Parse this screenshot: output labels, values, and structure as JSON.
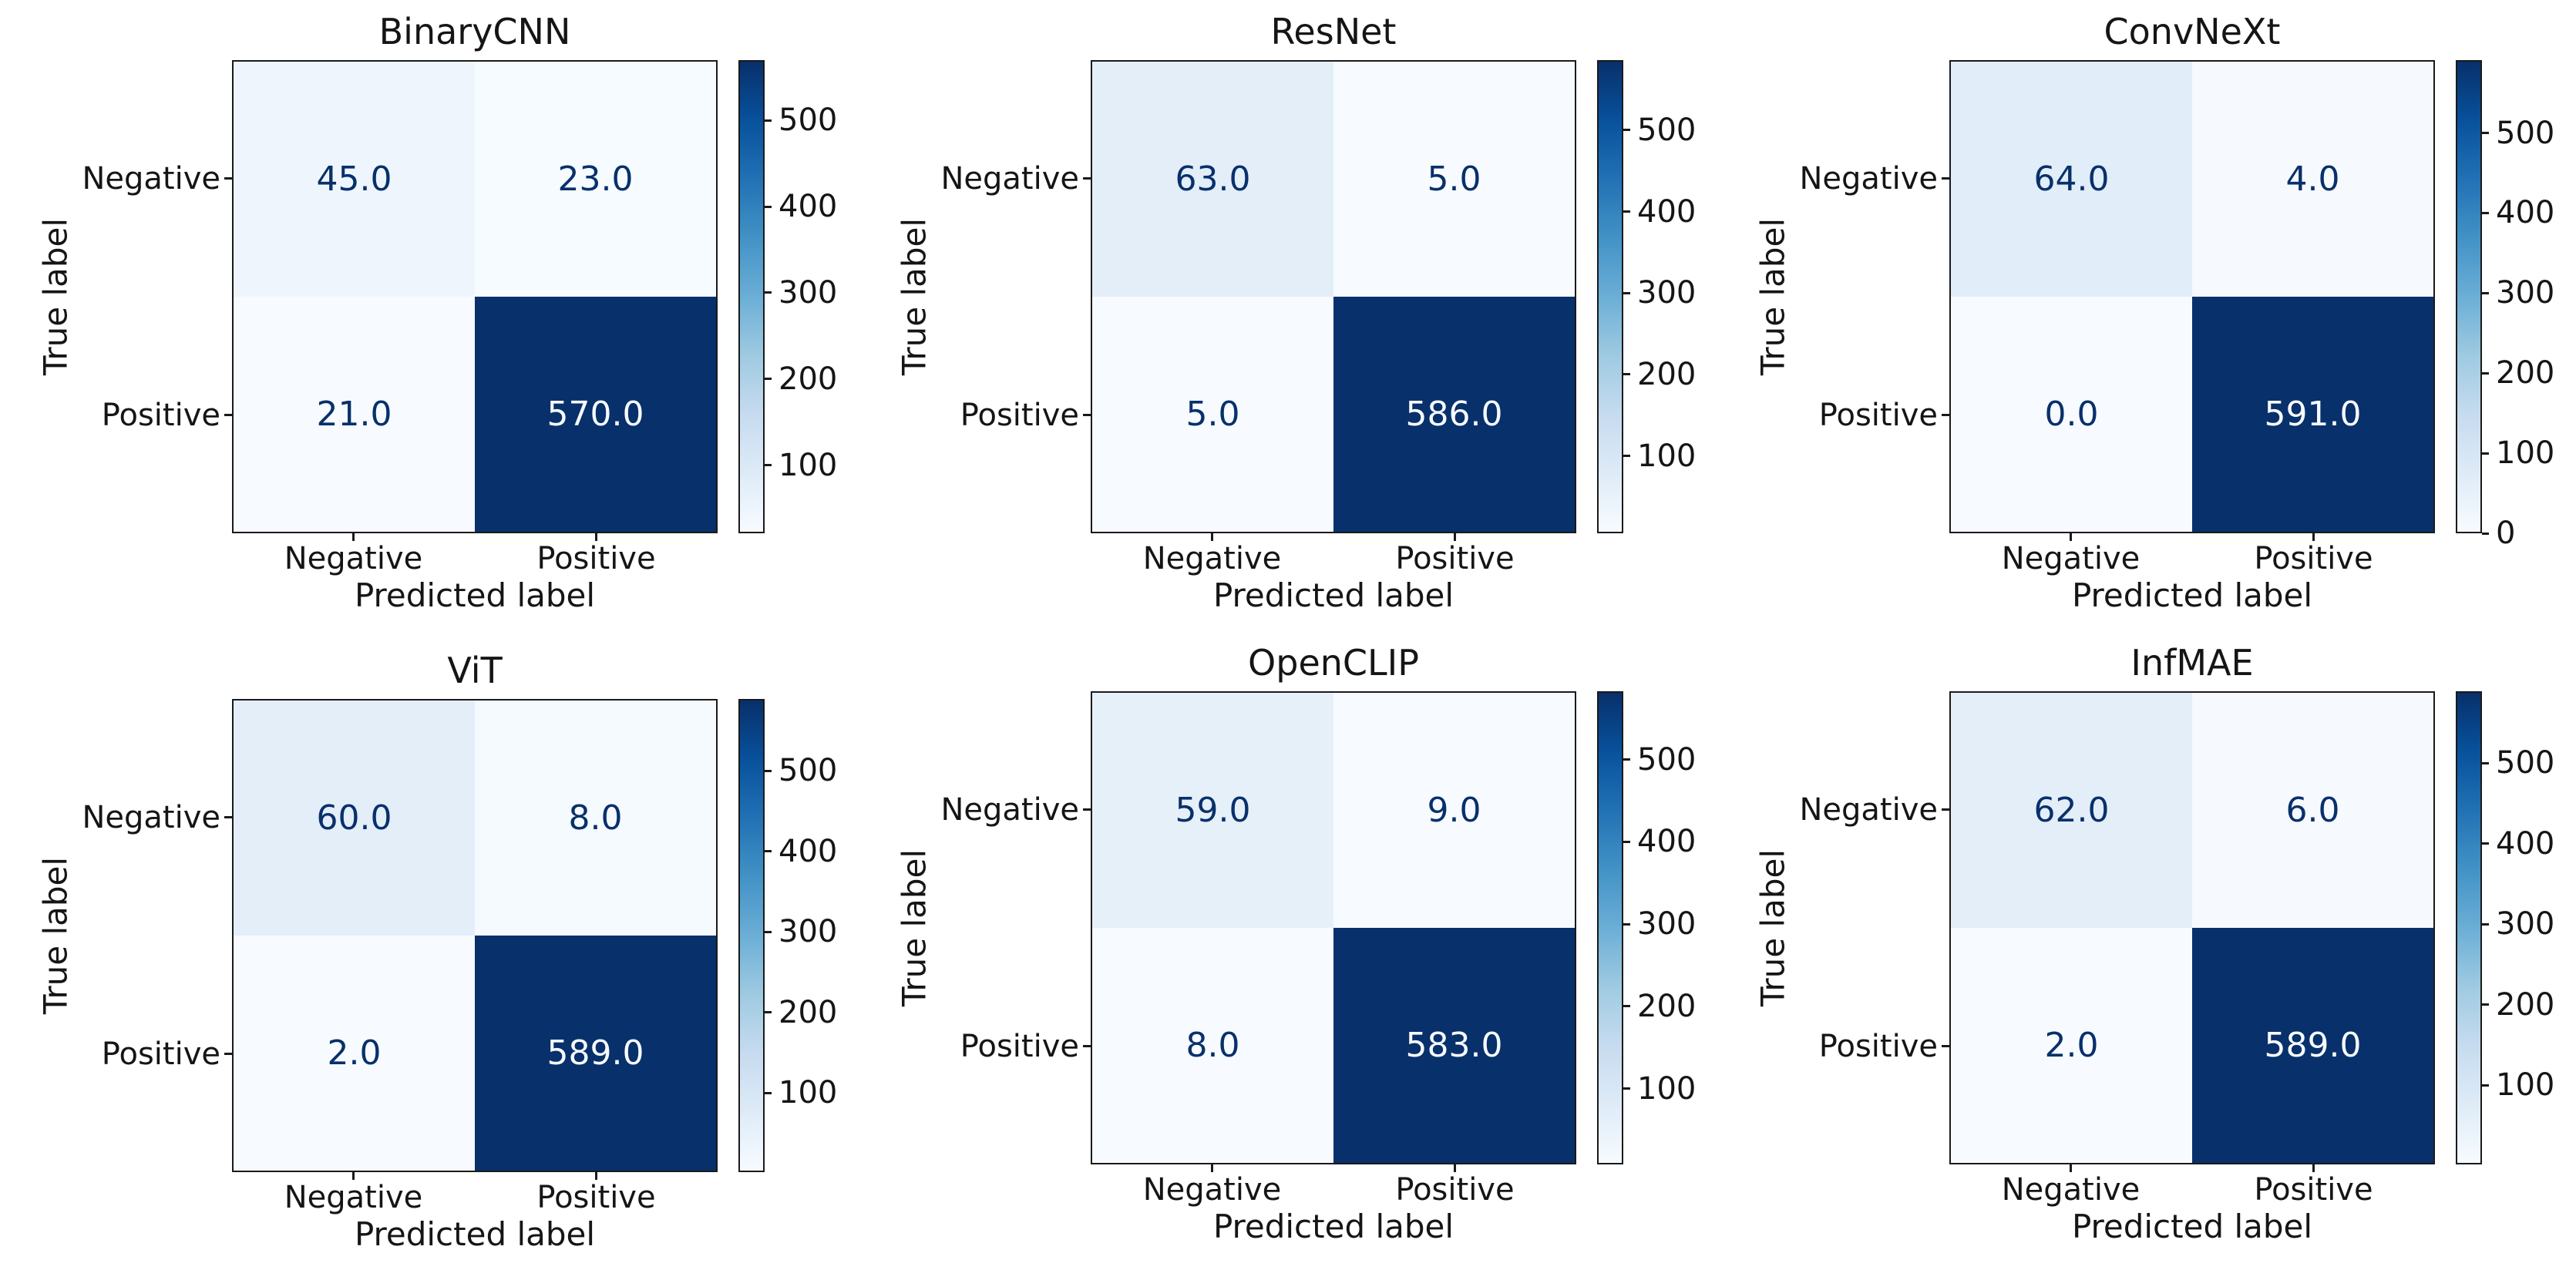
{
  "figure": {
    "background": "#ffffff",
    "text_color": "#151515",
    "spine_color": "#1a1a1a",
    "colormap": {
      "name": "Blues",
      "anchors": [
        "#f7fbff",
        "#deebf7",
        "#c6dbef",
        "#9ecae1",
        "#6baed6",
        "#4292c6",
        "#2171b5",
        "#08519c",
        "#08306b"
      ]
    },
    "x_axis_label": "Predicted label",
    "y_axis_label": "True label",
    "x_tick_labels": [
      "Negative",
      "Positive"
    ],
    "y_tick_labels": [
      "Negative",
      "Positive"
    ]
  },
  "chart_data": [
    {
      "type": "heatmap",
      "title": "BinaryCNN",
      "xlabel": "Predicted label",
      "ylabel": "True label",
      "x_categories": [
        "Negative",
        "Positive"
      ],
      "y_categories": [
        "Negative",
        "Positive"
      ],
      "matrix": [
        [
          45,
          23
        ],
        [
          21,
          570
        ]
      ],
      "display_matrix": [
        [
          "45.0",
          "23.0"
        ],
        [
          "21.0",
          "570.0"
        ]
      ],
      "vmin": 21,
      "vmax": 570,
      "colorbar_ticks": [
        100,
        200,
        300,
        400,
        500
      ],
      "legend_position": "right-colorbar",
      "grid": false
    },
    {
      "type": "heatmap",
      "title": "ResNet",
      "xlabel": "Predicted label",
      "ylabel": "True label",
      "x_categories": [
        "Negative",
        "Positive"
      ],
      "y_categories": [
        "Negative",
        "Positive"
      ],
      "matrix": [
        [
          63,
          5
        ],
        [
          5,
          586
        ]
      ],
      "display_matrix": [
        [
          "63.0",
          "5.0"
        ],
        [
          "5.0",
          "586.0"
        ]
      ],
      "vmin": 5,
      "vmax": 586,
      "colorbar_ticks": [
        100,
        200,
        300,
        400,
        500
      ],
      "legend_position": "right-colorbar",
      "grid": false
    },
    {
      "type": "heatmap",
      "title": "ConvNeXt",
      "xlabel": "Predicted label",
      "ylabel": "True label",
      "x_categories": [
        "Negative",
        "Positive"
      ],
      "y_categories": [
        "Negative",
        "Positive"
      ],
      "matrix": [
        [
          64,
          4
        ],
        [
          0,
          591
        ]
      ],
      "display_matrix": [
        [
          "64.0",
          "4.0"
        ],
        [
          "0.0",
          "591.0"
        ]
      ],
      "vmin": 0,
      "vmax": 591,
      "colorbar_ticks": [
        0,
        100,
        200,
        300,
        400,
        500
      ],
      "legend_position": "right-colorbar",
      "grid": false
    },
    {
      "type": "heatmap",
      "title": "ViT",
      "xlabel": "Predicted label",
      "ylabel": "True label",
      "x_categories": [
        "Negative",
        "Positive"
      ],
      "y_categories": [
        "Negative",
        "Positive"
      ],
      "matrix": [
        [
          60,
          8
        ],
        [
          2,
          589
        ]
      ],
      "display_matrix": [
        [
          "60.0",
          "8.0"
        ],
        [
          "2.0",
          "589.0"
        ]
      ],
      "vmin": 2,
      "vmax": 589,
      "colorbar_ticks": [
        100,
        200,
        300,
        400,
        500
      ],
      "legend_position": "right-colorbar",
      "grid": false
    },
    {
      "type": "heatmap",
      "title": "OpenCLIP",
      "xlabel": "Predicted label",
      "ylabel": "True label",
      "x_categories": [
        "Negative",
        "Positive"
      ],
      "y_categories": [
        "Negative",
        "Positive"
      ],
      "matrix": [
        [
          59,
          9
        ],
        [
          8,
          583
        ]
      ],
      "display_matrix": [
        [
          "59.0",
          "9.0"
        ],
        [
          "8.0",
          "583.0"
        ]
      ],
      "vmin": 8,
      "vmax": 583,
      "colorbar_ticks": [
        100,
        200,
        300,
        400,
        500
      ],
      "legend_position": "right-colorbar",
      "grid": false
    },
    {
      "type": "heatmap",
      "title": "InfMAE",
      "xlabel": "Predicted label",
      "ylabel": "True label",
      "x_categories": [
        "Negative",
        "Positive"
      ],
      "y_categories": [
        "Negative",
        "Positive"
      ],
      "matrix": [
        [
          62,
          6
        ],
        [
          2,
          589
        ]
      ],
      "display_matrix": [
        [
          "62.0",
          "6.0"
        ],
        [
          "2.0",
          "589.0"
        ]
      ],
      "vmin": 2,
      "vmax": 589,
      "colorbar_ticks": [
        100,
        200,
        300,
        400,
        500
      ],
      "legend_position": "right-colorbar",
      "grid": false
    }
  ]
}
